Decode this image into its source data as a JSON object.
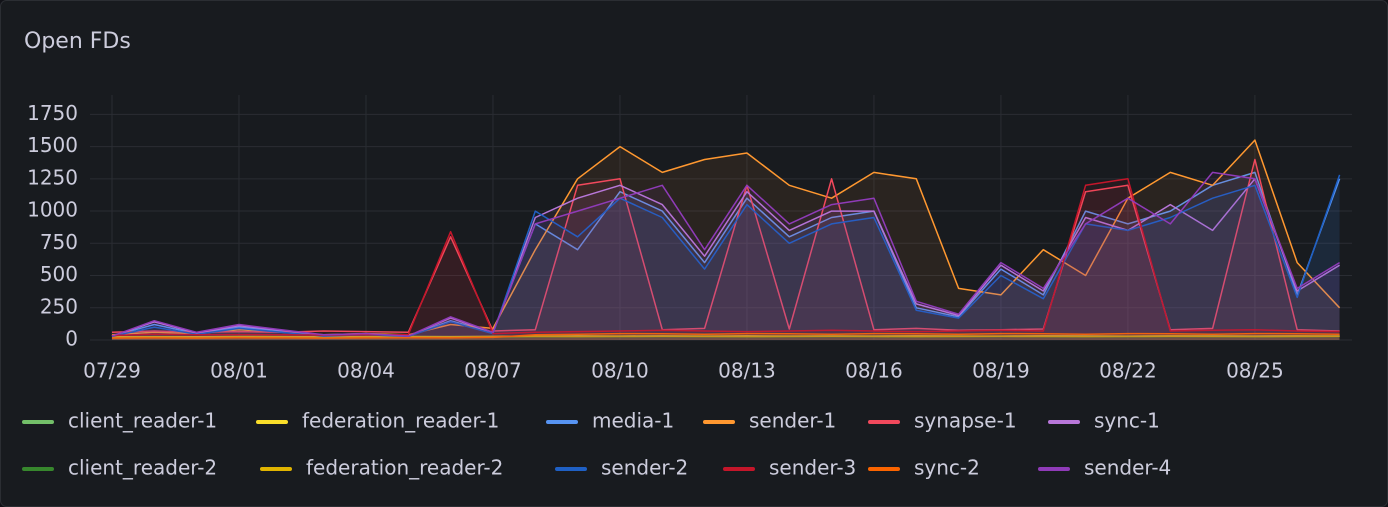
{
  "chart_data": {
    "type": "line",
    "title": "Open FDs",
    "x": [
      "07/29",
      "07/30",
      "07/31",
      "08/01",
      "08/02",
      "08/03",
      "08/04",
      "08/05",
      "08/06",
      "08/07",
      "08/08",
      "08/09",
      "08/10",
      "08/11",
      "08/12",
      "08/13",
      "08/14",
      "08/15",
      "08/16",
      "08/17",
      "08/18",
      "08/19",
      "08/20",
      "08/21",
      "08/22",
      "08/23",
      "08/24",
      "08/25",
      "08/26",
      "08/27"
    ],
    "xticks": [
      "07/29",
      "08/01",
      "08/04",
      "08/07",
      "08/10",
      "08/13",
      "08/16",
      "08/19",
      "08/22",
      "08/25"
    ],
    "ylim": [
      0,
      1900
    ],
    "yticks": [
      0,
      250,
      500,
      750,
      1000,
      1250,
      1500,
      1750
    ],
    "grid": true,
    "series": [
      {
        "name": "client_reader-1",
        "color": "#73bf69",
        "values": [
          20,
          22,
          21,
          20,
          22,
          21,
          20,
          22,
          21,
          25,
          30,
          28,
          30,
          32,
          30,
          28,
          30,
          31,
          30,
          29,
          28,
          30,
          31,
          30,
          29,
          30,
          31,
          30,
          29,
          30
        ]
      },
      {
        "name": "federation_reader-1",
        "color": "#fade2a",
        "values": [
          25,
          26,
          25,
          27,
          26,
          25,
          26,
          27,
          26,
          28,
          30,
          32,
          30,
          31,
          30,
          32,
          30,
          31,
          30,
          32,
          31,
          30,
          32,
          31,
          30,
          32,
          31,
          30,
          32,
          31
        ]
      },
      {
        "name": "media-1",
        "color": "#5794f2",
        "values": [
          30,
          120,
          50,
          100,
          70,
          35,
          45,
          30,
          150,
          60,
          900,
          700,
          1150,
          1000,
          600,
          1100,
          800,
          950,
          1000,
          250,
          180,
          550,
          350,
          1000,
          900,
          1000,
          1200,
          1300,
          350,
          1250
        ]
      },
      {
        "name": "sender-1",
        "color": "#ff9830",
        "values": [
          40,
          60,
          50,
          80,
          60,
          40,
          50,
          40,
          120,
          90,
          700,
          1250,
          1500,
          1300,
          1400,
          1450,
          1200,
          1100,
          1300,
          1250,
          400,
          350,
          700,
          500,
          1100,
          1300,
          1200,
          1550,
          600,
          250
        ]
      },
      {
        "name": "synapse-1",
        "color": "#f2495c",
        "values": [
          60,
          70,
          60,
          65,
          60,
          70,
          65,
          60,
          800,
          70,
          80,
          1200,
          1250,
          80,
          90,
          1200,
          85,
          1250,
          80,
          90,
          75,
          80,
          85,
          1150,
          1200,
          80,
          90,
          1400,
          80,
          70
        ]
      },
      {
        "name": "sync-1",
        "color": "#b877d9",
        "values": [
          30,
          140,
          55,
          110,
          75,
          38,
          48,
          30,
          170,
          55,
          950,
          1100,
          1200,
          1050,
          650,
          1150,
          850,
          1000,
          1000,
          280,
          190,
          580,
          380,
          950,
          850,
          1050,
          850,
          1250,
          380,
          580
        ]
      },
      {
        "name": "client_reader-2",
        "color": "#37872d",
        "values": [
          18,
          19,
          18,
          20,
          19,
          18,
          19,
          20,
          19,
          22,
          25,
          24,
          25,
          26,
          25,
          24,
          25,
          26,
          25,
          24,
          25,
          26,
          25,
          24,
          25,
          26,
          25,
          24,
          25,
          26
        ]
      },
      {
        "name": "federation_reader-2",
        "color": "#e0b400",
        "values": [
          22,
          23,
          22,
          24,
          23,
          22,
          23,
          24,
          23,
          26,
          28,
          27,
          28,
          29,
          28,
          27,
          28,
          29,
          28,
          27,
          28,
          29,
          28,
          27,
          28,
          29,
          28,
          27,
          28,
          29
        ]
      },
      {
        "name": "sender-2",
        "color": "#1f60c4",
        "values": [
          28,
          100,
          45,
          90,
          60,
          30,
          40,
          28,
          140,
          50,
          1000,
          800,
          1100,
          950,
          550,
          1050,
          750,
          900,
          950,
          230,
          170,
          500,
          320,
          900,
          850,
          950,
          1100,
          1200,
          330,
          1280
        ]
      },
      {
        "name": "sender-3",
        "color": "#c4162a",
        "values": [
          35,
          45,
          40,
          42,
          40,
          38,
          40,
          42,
          840,
          50,
          60,
          65,
          70,
          75,
          70,
          65,
          70,
          75,
          70,
          65,
          70,
          75,
          70,
          1200,
          1250,
          70,
          75,
          80,
          70,
          65
        ]
      },
      {
        "name": "sync-2",
        "color": "#fa6400",
        "values": [
          15,
          16,
          15,
          17,
          16,
          15,
          16,
          17,
          16,
          20,
          40,
          45,
          50,
          48,
          45,
          50,
          48,
          45,
          50,
          48,
          45,
          50,
          48,
          45,
          50,
          48,
          45,
          50,
          48,
          45
        ]
      },
      {
        "name": "sender-4",
        "color": "#8f3bb8",
        "values": [
          30,
          150,
          60,
          120,
          80,
          40,
          50,
          30,
          180,
          60,
          900,
          1000,
          1100,
          1200,
          700,
          1200,
          900,
          1050,
          1100,
          300,
          200,
          600,
          400,
          900,
          1100,
          900,
          1300,
          1250,
          400,
          600
        ]
      }
    ]
  }
}
